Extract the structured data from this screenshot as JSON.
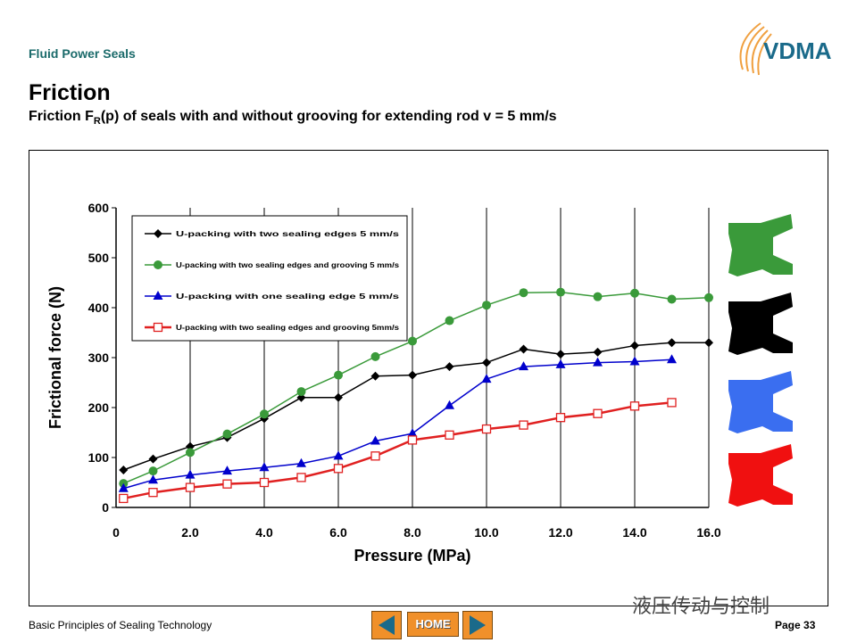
{
  "header": {
    "category": "Fluid Power Seals",
    "title": "Friction",
    "subtitle_prefix": "Friction F",
    "subtitle_sub": "R",
    "subtitle_suffix": "(p) of seals with and without grooving for extending rod v = 5 mm/s",
    "logo_text": "VDMA"
  },
  "footer": {
    "left_text": "Basic Principles of Sealing Technology",
    "page_label": "Page 33",
    "home_label": "HOME",
    "watermark": "液压传动与控制"
  },
  "colors": {
    "series_black": "#000000",
    "series_green": "#3a9a3a",
    "series_blue": "#0000cc",
    "series_red": "#e02020",
    "nav_orange": "#f0902a",
    "nav_arrow": "#1a6a8a",
    "category_text": "#1a6a6a"
  },
  "icons": [
    "seal-profile-green-icon",
    "seal-profile-black-icon",
    "seal-profile-blue-icon",
    "seal-profile-red-icon",
    "arrow-left-icon",
    "arrow-right-icon",
    "vdma-logo-icon"
  ],
  "chart_data": {
    "type": "line",
    "xlabel": "Pressure (MPa)",
    "ylabel": "Frictional force (N)",
    "xlim": [
      0,
      16
    ],
    "ylim": [
      0,
      600
    ],
    "xticks": [
      "0",
      "2.0",
      "4.0",
      "6.0",
      "8.0",
      "10.0",
      "12.0",
      "14.0",
      "16.0"
    ],
    "yticks": [
      "0",
      "100",
      "200",
      "300",
      "400",
      "500",
      "600"
    ],
    "grid": "vertical",
    "legend_position": "top-left",
    "series": [
      {
        "name": "U-packing with two sealing edges 5 mm/s",
        "color": "#000000",
        "marker": "diamond",
        "x": [
          0.2,
          1,
          2,
          3,
          4,
          5,
          6,
          7,
          8,
          9,
          10,
          11,
          12,
          13,
          14,
          15,
          16
        ],
        "y": [
          75,
          97,
          122,
          140,
          178,
          220,
          220,
          263,
          265,
          282,
          290,
          317,
          307,
          311,
          324,
          330,
          330
        ]
      },
      {
        "name": "U-packing with two sealing edges and grooving 5 mm/s",
        "color": "#3a9a3a",
        "marker": "circle",
        "x": [
          0.2,
          1,
          2,
          3,
          4,
          5,
          6,
          7,
          8,
          9,
          10,
          11,
          12,
          13,
          14,
          15,
          16
        ],
        "y": [
          48,
          73,
          110,
          147,
          187,
          232,
          265,
          302,
          333,
          374,
          405,
          430,
          431,
          422,
          429,
          417,
          420
        ]
      },
      {
        "name": "U-packing with one sealing edge 5 mm/s",
        "color": "#0000cc",
        "marker": "triangle",
        "x": [
          0.2,
          1,
          2,
          3,
          4,
          5,
          6,
          7,
          8,
          9,
          10,
          11,
          12,
          13,
          14,
          15
        ],
        "y": [
          38,
          55,
          65,
          73,
          80,
          88,
          103,
          133,
          148,
          204,
          257,
          282,
          286,
          290,
          292,
          296
        ]
      },
      {
        "name": "U-packing with two sealing edges and grooving 5mm/s",
        "color": "#e02020",
        "marker": "square-open",
        "x": [
          0.2,
          1,
          2,
          3,
          4,
          5,
          6,
          7,
          8,
          9,
          10,
          11,
          12,
          13,
          14,
          15
        ],
        "y": [
          18,
          30,
          40,
          47,
          50,
          60,
          78,
          103,
          135,
          145,
          157,
          165,
          180,
          188,
          203,
          210
        ]
      }
    ]
  }
}
